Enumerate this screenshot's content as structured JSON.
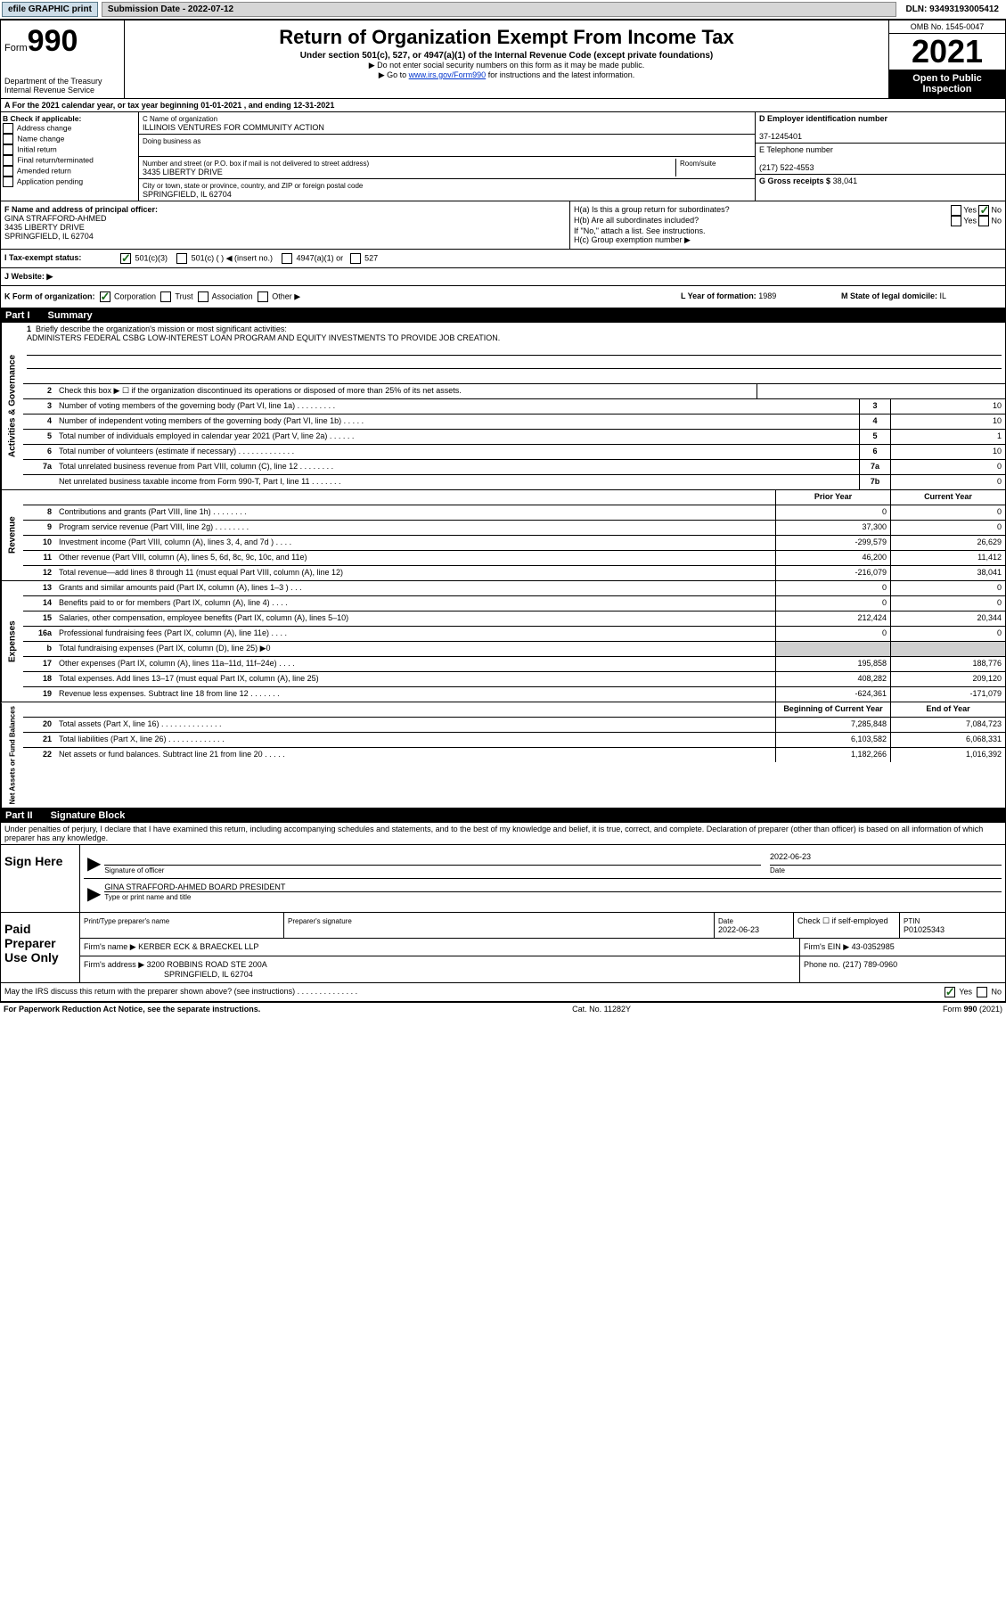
{
  "topbar": {
    "efile": "efile GRAPHIC print",
    "submission": "Submission Date - 2022-07-12",
    "dln": "DLN: 93493193005412"
  },
  "header": {
    "form_label": "Form",
    "form_num": "990",
    "title": "Return of Organization Exempt From Income Tax",
    "subtitle": "Under section 501(c), 527, or 4947(a)(1) of the Internal Revenue Code (except private foundations)",
    "note1": "▶ Do not enter social security numbers on this form as it may be made public.",
    "note2_pre": "▶ Go to ",
    "note2_link": "www.irs.gov/Form990",
    "note2_post": " for instructions and the latest information.",
    "dept": "Department of the Treasury\nInternal Revenue Service",
    "omb": "OMB No. 1545-0047",
    "year": "2021",
    "inspection": "Open to Public Inspection"
  },
  "rowA": "A For the 2021 calendar year, or tax year beginning 01-01-2021    , and ending 12-31-2021",
  "colB": {
    "label": "B Check if applicable:",
    "items": [
      "Address change",
      "Name change",
      "Initial return",
      "Final return/terminated",
      "Amended return",
      "Application pending"
    ]
  },
  "colC": {
    "c_label": "C Name of organization",
    "org_name": "ILLINOIS VENTURES FOR COMMUNITY ACTION",
    "dba_label": "Doing business as",
    "addr_label": "Number and street (or P.O. box if mail is not delivered to street address)",
    "room_label": "Room/suite",
    "street": "3435 LIBERTY DRIVE",
    "city_label": "City or town, state or province, country, and ZIP or foreign postal code",
    "city": "SPRINGFIELD, IL  62704"
  },
  "colD": {
    "d_label": "D Employer identification number",
    "ein": "37-1245401",
    "e_label": "E Telephone number",
    "phone": "(217) 522-4553",
    "g_label": "G Gross receipts $",
    "gross": "38,041"
  },
  "rowF": {
    "f_label": "F Name and address of principal officer:",
    "officer": "GINA STRAFFORD-AHMED\n3435 LIBERTY DRIVE\nSPRINGFIELD, IL  62704",
    "ha": "H(a)  Is this a group return for subordinates?",
    "hb": "H(b)  Are all subordinates included?",
    "hnote": "If \"No,\" attach a list. See instructions.",
    "hc": "H(c)  Group exemption number ▶",
    "yes": "Yes",
    "no": "No"
  },
  "rowI": {
    "i_label": "I   Tax-exempt status:",
    "opt1": "501(c)(3)",
    "opt2": "501(c) (  ) ◀ (insert no.)",
    "opt3": "4947(a)(1) or",
    "opt4": "527"
  },
  "rowJ": "J   Website: ▶",
  "rowK": {
    "k_label": "K Form of organization:",
    "opts": [
      "Corporation",
      "Trust",
      "Association",
      "Other ▶"
    ],
    "l_label": "L Year of formation: ",
    "l_val": "1989",
    "m_label": "M State of legal domicile: ",
    "m_val": "IL"
  },
  "part1": {
    "header": "Part I",
    "title": "Summary"
  },
  "mission": {
    "num": "1",
    "label": "Briefly describe the organization's mission or most significant activities:",
    "text": "ADMINISTERS FEDERAL CSBG LOW-INTEREST LOAN PROGRAM AND EQUITY INVESTMENTS TO PROVIDE JOB CREATION."
  },
  "governance": {
    "side": "Activities & Governance",
    "lines": [
      {
        "num": "2",
        "desc": "Check this box ▶ ☐  if the organization discontinued its operations or disposed of more than 25% of its net assets."
      },
      {
        "num": "3",
        "desc": "Number of voting members of the governing body (Part VI, line 1a)  .   .   .   .   .   .   .   .   .",
        "box": "3",
        "val": "10"
      },
      {
        "num": "4",
        "desc": "Number of independent voting members of the governing body (Part VI, line 1b)  .   .   .   .   .",
        "box": "4",
        "val": "10"
      },
      {
        "num": "5",
        "desc": "Total number of individuals employed in calendar year 2021 (Part V, line 2a)  .   .   .   .   .   .",
        "box": "5",
        "val": "1"
      },
      {
        "num": "6",
        "desc": "Total number of volunteers (estimate if necessary)   .   .   .   .   .   .   .   .   .   .   .   .   .",
        "box": "6",
        "val": "10"
      },
      {
        "num": "7a",
        "desc": "Total unrelated business revenue from Part VIII, column (C), line 12   .   .   .   .   .   .   .   .",
        "box": "7a",
        "val": "0"
      },
      {
        "num": "",
        "desc": "Net unrelated business taxable income from Form 990-T, Part I, line 11  .   .   .   .   .   .   .",
        "box": "7b",
        "val": "0"
      }
    ]
  },
  "revenue": {
    "side": "Revenue",
    "header_prior": "Prior Year",
    "header_current": "Current Year",
    "lines": [
      {
        "num": "8",
        "desc": "Contributions and grants (Part VIII, line 1h)   .   .   .   .   .   .   .   .",
        "prior": "0",
        "curr": "0"
      },
      {
        "num": "9",
        "desc": "Program service revenue (Part VIII, line 2g)   .   .   .   .   .   .   .   .",
        "prior": "37,300",
        "curr": "0"
      },
      {
        "num": "10",
        "desc": "Investment income (Part VIII, column (A), lines 3, 4, and 7d )   .   .   .   .",
        "prior": "-299,579",
        "curr": "26,629"
      },
      {
        "num": "11",
        "desc": "Other revenue (Part VIII, column (A), lines 5, 6d, 8c, 9c, 10c, and 11e)",
        "prior": "46,200",
        "curr": "11,412"
      },
      {
        "num": "12",
        "desc": "Total revenue—add lines 8 through 11 (must equal Part VIII, column (A), line 12)",
        "prior": "-216,079",
        "curr": "38,041"
      }
    ]
  },
  "expenses": {
    "side": "Expenses",
    "lines": [
      {
        "num": "13",
        "desc": "Grants and similar amounts paid (Part IX, column (A), lines 1–3 )   .   .   .",
        "prior": "0",
        "curr": "0"
      },
      {
        "num": "14",
        "desc": "Benefits paid to or for members (Part IX, column (A), line 4)   .   .   .   .",
        "prior": "0",
        "curr": "0"
      },
      {
        "num": "15",
        "desc": "Salaries, other compensation, employee benefits (Part IX, column (A), lines 5–10)",
        "prior": "212,424",
        "curr": "20,344"
      },
      {
        "num": "16a",
        "desc": "Professional fundraising fees (Part IX, column (A), line 11e)   .   .   .   .",
        "prior": "0",
        "curr": "0"
      },
      {
        "num": "b",
        "desc": "Total fundraising expenses (Part IX, column (D), line 25) ▶0",
        "prior": "",
        "curr": "",
        "gray": true
      },
      {
        "num": "17",
        "desc": "Other expenses (Part IX, column (A), lines 11a–11d, 11f–24e)   .   .   .   .",
        "prior": "195,858",
        "curr": "188,776"
      },
      {
        "num": "18",
        "desc": "Total expenses. Add lines 13–17 (must equal Part IX, column (A), line 25)",
        "prior": "408,282",
        "curr": "209,120"
      },
      {
        "num": "19",
        "desc": "Revenue less expenses. Subtract line 18 from line 12  .   .   .   .   .   .   .",
        "prior": "-624,361",
        "curr": "-171,079"
      }
    ]
  },
  "netassets": {
    "side": "Net Assets or Fund Balances",
    "header_begin": "Beginning of Current Year",
    "header_end": "End of Year",
    "lines": [
      {
        "num": "20",
        "desc": "Total assets (Part X, line 16)   .   .   .   .   .   .   .   .   .   .   .   .   .   .",
        "prior": "7,285,848",
        "curr": "7,084,723"
      },
      {
        "num": "21",
        "desc": "Total liabilities (Part X, line 26)   .   .   .   .   .   .   .   .   .   .   .   .   .",
        "prior": "6,103,582",
        "curr": "6,068,331"
      },
      {
        "num": "22",
        "desc": "Net assets or fund balances. Subtract line 21 from line 20   .   .   .   .   .",
        "prior": "1,182,266",
        "curr": "1,016,392"
      }
    ]
  },
  "part2": {
    "header": "Part II",
    "title": "Signature Block"
  },
  "penalties": "Under penalties of perjury, I declare that I have examined this return, including accompanying schedules and statements, and to the best of my knowledge and belief, it is true, correct, and complete. Declaration of preparer (other than officer) is based on all information of which preparer has any knowledge.",
  "sign": {
    "label": "Sign Here",
    "date": "2022-06-23",
    "sig_label": "Signature of officer",
    "date_label": "Date",
    "name": "GINA STRAFFORD-AHMED  BOARD PRESIDENT",
    "name_label": "Type or print name and title"
  },
  "preparer": {
    "label": "Paid Preparer Use Only",
    "print_label": "Print/Type preparer's name",
    "sig_label": "Preparer's signature",
    "date_label": "Date",
    "date": "2022-06-23",
    "check_label": "Check ☐ if self-employed",
    "ptin_label": "PTIN",
    "ptin": "P01025343",
    "firm_name_label": "Firm's name    ▶",
    "firm_name": "KERBER ECK & BRAECKEL LLP",
    "firm_ein_label": "Firm's EIN ▶",
    "firm_ein": "43-0352985",
    "firm_addr_label": "Firm's address ▶",
    "firm_addr": "3200 ROBBINS ROAD STE 200A",
    "firm_city": "SPRINGFIELD, IL  62704",
    "phone_label": "Phone no.",
    "phone": "(217) 789-0960"
  },
  "discuss": {
    "text": "May the IRS discuss this return with the preparer shown above? (see instructions)   .   .   .   .   .   .   .   .   .   .   .   .   .   .",
    "yes": "Yes",
    "no": "No"
  },
  "footer": {
    "left": "For Paperwork Reduction Act Notice, see the separate instructions.",
    "mid": "Cat. No. 11282Y",
    "right": "Form 990 (2021)"
  }
}
